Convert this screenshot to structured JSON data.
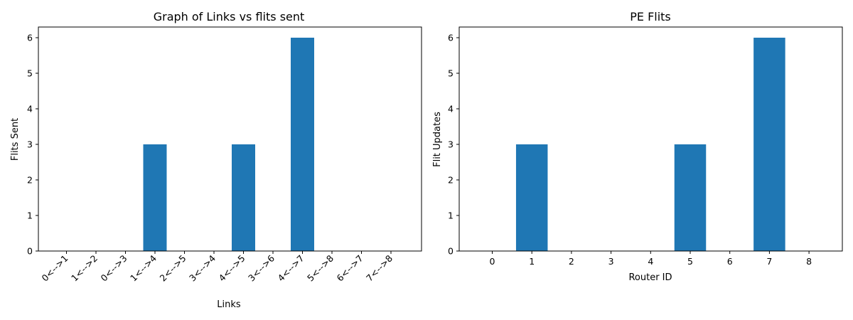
{
  "chart_data": [
    {
      "type": "bar",
      "title": "Graph of Links vs flits sent",
      "xlabel": "Links",
      "ylabel": "Flits Sent",
      "categories": [
        "0<-->1",
        "1<-->2",
        "0<-->3",
        "1<-->4",
        "2<-->5",
        "3<-->4",
        "4<-->5",
        "3<-->6",
        "4<-->7",
        "5<-->8",
        "6<-->7",
        "7<-->8"
      ],
      "values": [
        0,
        0,
        0,
        3,
        0,
        0,
        3,
        0,
        6,
        0,
        0,
        0
      ],
      "ylim": [
        0,
        6.3
      ],
      "yticks": [
        0,
        1,
        2,
        3,
        4,
        5,
        6
      ],
      "color": "#1f77b4",
      "grid": false
    },
    {
      "type": "bar",
      "title": "PE Flits",
      "xlabel": "Router ID",
      "ylabel": "Flit Updates",
      "categories": [
        "0",
        "1",
        "2",
        "3",
        "4",
        "5",
        "6",
        "7",
        "8"
      ],
      "values": [
        0,
        3,
        0,
        0,
        0,
        3,
        0,
        6,
        0
      ],
      "ylim": [
        0,
        6.3
      ],
      "yticks": [
        0,
        1,
        2,
        3,
        4,
        5,
        6
      ],
      "color": "#1f77b4",
      "grid": false
    }
  ]
}
